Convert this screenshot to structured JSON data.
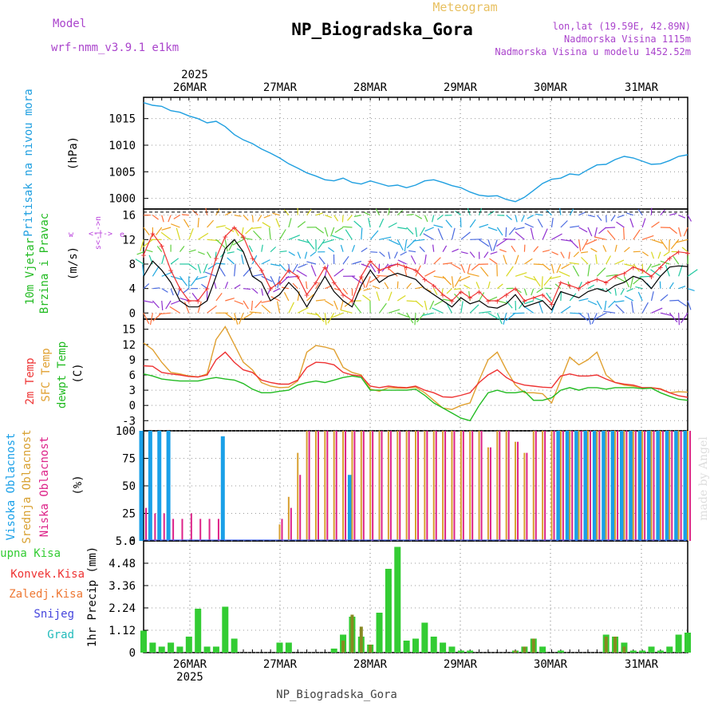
{
  "header": {
    "meteogram_label": "Meteogram",
    "station_title": "NP_Biogradska_Gora",
    "model_label": "Model",
    "model_name": "wrf-nmm_v3.9.1  e1km",
    "lonlat": "lon,lat (19.59E, 42.89N)",
    "altitude": "Nadmorska Visina 1115m",
    "model_altitude": "Nadmorska Visina u modelu 1452.52m"
  },
  "footer": {
    "station": "NP_Biogradska_Gora",
    "credit": "made by Angel"
  },
  "time_axis": {
    "year": "2025",
    "days": [
      "26MAR",
      "27MAR",
      "28MAR",
      "29MAR",
      "30MAR",
      "31MAR"
    ]
  },
  "panels": {
    "pressure": {
      "label": "Pritisak na nivou mora",
      "unit": "(hPa)",
      "ticks": [
        "1000",
        "1005",
        "1010",
        "1015"
      ]
    },
    "wind": {
      "label1": "10m Vjetar",
      "label2": "Brzina i Pravac",
      "unit": "(m/s)",
      "ticks": [
        "0",
        "4",
        "8",
        "12",
        "16"
      ],
      "compass": [
        "w",
        "<-|->",
        "e",
        "s<-|->n"
      ]
    },
    "temp": {
      "labels": [
        "2m Temp",
        "SFC Temp",
        "dewpt Temp"
      ],
      "unit": "(C)",
      "ticks": [
        "-3",
        "0",
        "3",
        "6",
        "9",
        "12",
        "15"
      ]
    },
    "cloud": {
      "labels": [
        "Visoka Oblacnost",
        "Srednja Oblacnost",
        "Niska Oblacnost"
      ],
      "unit": "(%)",
      "ticks": [
        "0",
        "25",
        "50",
        "75",
        "100"
      ]
    },
    "precip": {
      "labels": [
        "Ukupna Kisa",
        "Konvek.Kisa",
        "Zaledj.Kisa",
        "Snijeg",
        "Grad"
      ],
      "unit": "1hr Precip (mm)",
      "ticks": [
        "0",
        "1.12",
        "2.24",
        "3.36",
        "4.48",
        "5.6"
      ]
    }
  },
  "colors": {
    "pressure": "#1f9fe0",
    "temp2m": "#ee3333",
    "sfc": "#e0a030",
    "dewpt": "#22bb22",
    "high": "#1aa0e8",
    "mid": "#d8a030",
    "low": "#dd2288",
    "rain": "#33cc33",
    "conv": "#888822",
    "windspeed": "#000000",
    "gust": "#ee3333",
    "purple": "#bb44dd",
    "gold": "#e8c060"
  },
  "chart_data": [
    {
      "type": "line",
      "title": "Pritisak na nivou mora",
      "ylabel": "(hPa)",
      "ylim": [
        998,
        1019
      ],
      "x": [
        0,
        1,
        2,
        3,
        4,
        5,
        6,
        7,
        8,
        9,
        10,
        11,
        12,
        13,
        14,
        15,
        16,
        17,
        18,
        19,
        20,
        21,
        22,
        23,
        24,
        25,
        26,
        27,
        28,
        29,
        30,
        31,
        32,
        33,
        34,
        35,
        36,
        37,
        38,
        39,
        40,
        41,
        42,
        43,
        44,
        45,
        46,
        47,
        48,
        49,
        50,
        51,
        52,
        53,
        54,
        55,
        56,
        57,
        58,
        59,
        60
      ],
      "series": [
        {
          "values": [
            1018,
            1017.5,
            1017.3,
            1016.5,
            1016.2,
            1015.5,
            1015,
            1014.2,
            1014.5,
            1013.5,
            1012,
            1011,
            1010.3,
            1009.3,
            1008.5,
            1007.6,
            1006.5,
            1005.7,
            1004.8,
            1004.2,
            1003.5,
            1003.3,
            1003.8,
            1003,
            1002.7,
            1003.3,
            1002.8,
            1002.3,
            1002.5,
            1002,
            1002.5,
            1003.3,
            1003.5,
            1003,
            1002.4,
            1002,
            1001.2,
            1000.6,
            1000.4,
            1000.5,
            999.8,
            999.4,
            1000.2,
            1001.5,
            1002.8,
            1003.6,
            1003.8,
            1004.6,
            1004.4,
            1005.4,
            1006.3,
            1006.4,
            1007.3,
            1007.9,
            1007.6,
            1007,
            1006.4,
            1006.5,
            1007.1,
            1007.9,
            1008.2
          ]
        }
      ]
    },
    {
      "type": "line",
      "title": "10m Vjetar Brzina i Pravac",
      "ylabel": "(m/s)",
      "ylim": [
        -1,
        17
      ],
      "x": [
        0,
        1,
        2,
        3,
        4,
        5,
        6,
        7,
        8,
        9,
        10,
        11,
        12,
        13,
        14,
        15,
        16,
        17,
        18,
        19,
        20,
        21,
        22,
        23,
        24,
        25,
        26,
        27,
        28,
        29,
        30,
        31,
        32,
        33,
        34,
        35,
        36,
        37,
        38,
        39,
        40,
        41,
        42,
        43,
        44,
        45,
        46,
        47,
        48,
        49,
        50,
        51,
        52,
        53,
        54,
        55,
        56,
        57,
        58,
        59,
        60
      ],
      "series": [
        {
          "values": [
            6,
            8.5,
            7,
            5,
            2,
            1,
            1,
            2,
            6,
            10.5,
            12,
            10,
            6,
            5,
            2,
            3,
            5,
            3.5,
            1,
            3.5,
            6,
            3.5,
            2,
            1,
            4.5,
            7,
            5,
            6,
            6.5,
            6,
            5.5,
            4,
            3,
            2,
            1,
            2.5,
            1.5,
            2,
            1,
            0.8,
            1.5,
            3,
            1,
            1.5,
            2,
            0.5,
            3.5,
            3,
            2.5,
            3.5,
            4,
            3.5,
            4.5,
            5,
            6,
            5.5,
            4,
            6,
            7.5,
            7.7,
            7.6
          ]
        },
        {
          "values": [
            9.5,
            13,
            11,
            7,
            4,
            2,
            2,
            4,
            9,
            12.5,
            14,
            12.5,
            9,
            7,
            4,
            5,
            7,
            6,
            3,
            5,
            7.5,
            5,
            3,
            2,
            6,
            8.5,
            7,
            7.5,
            8,
            7.5,
            7,
            5.5,
            4.5,
            3,
            2,
            3.5,
            2.5,
            3.5,
            2,
            2,
            3,
            4,
            2,
            2.5,
            3,
            1.5,
            5,
            4.5,
            4,
            5,
            5.5,
            5,
            6,
            6.5,
            7.5,
            7,
            6,
            7.5,
            9,
            10,
            9.8
          ]
        }
      ]
    },
    {
      "type": "line",
      "title": "2m Temp / SFC Temp / dewpt Temp",
      "ylabel": "(C)",
      "ylim": [
        -5,
        17
      ],
      "x": [
        0,
        1,
        2,
        3,
        4,
        5,
        6,
        7,
        8,
        9,
        10,
        11,
        12,
        13,
        14,
        15,
        16,
        17,
        18,
        19,
        20,
        21,
        22,
        23,
        24,
        25,
        26,
        27,
        28,
        29,
        30,
        31,
        32,
        33,
        34,
        35,
        36,
        37,
        38,
        39,
        40,
        41,
        42,
        43,
        44,
        45,
        46,
        47,
        48,
        49,
        50,
        51,
        52,
        53,
        54,
        55,
        56,
        57,
        58,
        59,
        60
      ],
      "series": [
        {
          "name": "2m Temp",
          "values": [
            7.8,
            7.7,
            6.5,
            6.2,
            6,
            5.7,
            5.6,
            6,
            9,
            10.5,
            8.5,
            7,
            6.5,
            5,
            4.5,
            4.2,
            4.2,
            5,
            7.5,
            8.5,
            8.4,
            8,
            6.5,
            6,
            5.8,
            3.8,
            3.5,
            3.8,
            3.6,
            3.5,
            3.8,
            3,
            2.5,
            1.7,
            1.6,
            2,
            2.5,
            4.5,
            6,
            7,
            5.5,
            4.5,
            4,
            3.8,
            3.6,
            3.5,
            5.8,
            6.2,
            5.8,
            5.8,
            6,
            5.2,
            4.5,
            4.2,
            4,
            3.5,
            3.5,
            3.2,
            2.5,
            1.9,
            1.6
          ]
        },
        {
          "name": "SFC Temp",
          "values": [
            12.3,
            11,
            8.5,
            6.5,
            6.2,
            5.8,
            5.6,
            6.2,
            13,
            15.5,
            12,
            8.5,
            7,
            4.5,
            3.8,
            3.5,
            3.6,
            4.8,
            10.5,
            11.8,
            11.5,
            11,
            7.5,
            6.5,
            6,
            3.2,
            2.8,
            3.5,
            3.4,
            3.4,
            3.6,
            2.5,
            1,
            -0.5,
            -0.8,
            0,
            0.5,
            5,
            9,
            10.5,
            7,
            4,
            2.5,
            2.5,
            2.3,
            0.5,
            5,
            9.5,
            8,
            9,
            10.5,
            6,
            4.5,
            4,
            3.8,
            3.5,
            3.5,
            3.3,
            2.5,
            2.7,
            2.6
          ]
        },
        {
          "name": "dewpt Temp",
          "values": [
            6.2,
            5.8,
            5.2,
            5,
            4.8,
            4.8,
            4.8,
            5.2,
            5.5,
            5.2,
            5,
            4.3,
            3.2,
            2.5,
            2.5,
            2.8,
            3,
            4,
            4.5,
            4.8,
            4.5,
            5,
            5.5,
            5.8,
            5.5,
            3,
            3,
            3,
            3,
            3,
            3.2,
            2,
            0.5,
            -0.5,
            -1.5,
            -2.5,
            -3,
            0,
            2.5,
            3,
            2.5,
            2.5,
            2.8,
            1,
            1,
            1.5,
            3,
            3.5,
            3,
            3.5,
            3.5,
            3.2,
            3.5,
            3.5,
            3.5,
            3.3,
            3.4,
            2.5,
            1.8,
            1.2,
            1
          ]
        }
      ]
    },
    {
      "type": "bar",
      "title": "Visoka / Srednja / Niska Oblacnost",
      "ylabel": "(%)",
      "ylim": [
        0,
        100
      ],
      "x": [
        0,
        1,
        2,
        3,
        4,
        5,
        6,
        7,
        8,
        9,
        10,
        11,
        12,
        13,
        14,
        15,
        16,
        17,
        18,
        19,
        20,
        21,
        22,
        23,
        24,
        25,
        26,
        27,
        28,
        29,
        30,
        31,
        32,
        33,
        34,
        35,
        36,
        37,
        38,
        39,
        40,
        41,
        42,
        43,
        44,
        45,
        46,
        47,
        48,
        49,
        50,
        51,
        52,
        53,
        54,
        55,
        56,
        57,
        58,
        59,
        60
      ],
      "series": [
        {
          "name": "Visoka Oblacnost",
          "values": [
            100,
            100,
            100,
            100,
            0,
            0,
            0,
            0,
            0,
            95,
            0,
            0,
            0,
            0,
            0,
            0,
            0,
            0,
            0,
            0,
            0,
            0,
            0,
            60,
            0,
            0,
            0,
            0,
            0,
            0,
            0,
            0,
            0,
            0,
            0,
            0,
            0,
            0,
            0,
            0,
            0,
            0,
            0,
            0,
            0,
            0,
            100,
            100,
            100,
            100,
            100,
            100,
            100,
            100,
            100,
            100,
            100,
            100,
            100,
            100,
            100
          ]
        },
        {
          "name": "Srednja Oblacnost",
          "values": [
            0,
            0,
            0,
            0,
            0,
            0,
            0,
            0,
            0,
            0,
            0,
            0,
            0,
            0,
            0,
            15,
            40,
            80,
            100,
            100,
            100,
            100,
            100,
            100,
            100,
            100,
            100,
            100,
            100,
            100,
            100,
            100,
            100,
            100,
            100,
            100,
            100,
            100,
            85,
            100,
            100,
            90,
            80,
            100,
            100,
            100,
            100,
            100,
            100,
            100,
            100,
            100,
            100,
            100,
            100,
            100,
            100,
            100,
            100,
            100,
            100
          ]
        },
        {
          "name": "Niska Oblacnost",
          "values": [
            30,
            25,
            25,
            20,
            20,
            25,
            20,
            20,
            20,
            0,
            0,
            0,
            0,
            0,
            0,
            20,
            30,
            60,
            100,
            100,
            100,
            100,
            100,
            100,
            100,
            100,
            100,
            100,
            100,
            100,
            100,
            100,
            100,
            100,
            100,
            100,
            100,
            100,
            85,
            100,
            100,
            90,
            80,
            100,
            100,
            100,
            100,
            100,
            100,
            100,
            100,
            100,
            100,
            100,
            100,
            100,
            100,
            100,
            100,
            100,
            100
          ]
        }
      ]
    },
    {
      "type": "bar",
      "title": "1hr Precip",
      "ylabel": "(mm)",
      "ylim": [
        0,
        5.6
      ],
      "x": [
        0,
        1,
        2,
        3,
        4,
        5,
        6,
        7,
        8,
        9,
        10,
        11,
        12,
        13,
        14,
        15,
        16,
        17,
        18,
        19,
        20,
        21,
        22,
        23,
        24,
        25,
        26,
        27,
        28,
        29,
        30,
        31,
        32,
        33,
        34,
        35,
        36,
        37,
        38,
        39,
        40,
        41,
        42,
        43,
        44,
        45,
        46,
        47,
        48,
        49,
        50,
        51,
        52,
        53,
        54,
        55,
        56,
        57,
        58,
        59,
        60
      ],
      "series": [
        {
          "name": "Ukupna Kisa",
          "values": [
            1.1,
            0.5,
            0.3,
            0.5,
            0.3,
            0.8,
            2.2,
            0.3,
            0.3,
            2.3,
            0.7,
            0,
            0,
            0,
            0,
            0.5,
            0.5,
            0,
            0,
            0,
            0,
            0.2,
            0.9,
            1.8,
            0.8,
            0.4,
            2,
            4.2,
            5.3,
            0.6,
            0.7,
            1.5,
            0.8,
            0.5,
            0.3,
            0.1,
            0.1,
            0,
            0,
            0,
            0,
            0.1,
            0.3,
            0.7,
            0.3,
            0,
            0.1,
            0,
            0,
            0,
            0,
            0.9,
            0.8,
            0.5,
            0.1,
            0.1,
            0.3,
            0.1,
            0.3,
            0.9,
            1
          ]
        },
        {
          "name": "Konvek.Kisa",
          "values": [
            0,
            0,
            0,
            0,
            0,
            0,
            0,
            0,
            0,
            0,
            0,
            0,
            0,
            0,
            0,
            0,
            0,
            0,
            0,
            0,
            0,
            0,
            0.6,
            1.9,
            1.3,
            0.4,
            0,
            0,
            0,
            0,
            0,
            0,
            0,
            0,
            0,
            0,
            0,
            0,
            0,
            0,
            0,
            0.1,
            0.3,
            0.7,
            0,
            0,
            0,
            0,
            0,
            0,
            0,
            0.8,
            0.8,
            0.3,
            0,
            0,
            0,
            0,
            0,
            0,
            0
          ]
        }
      ]
    }
  ]
}
